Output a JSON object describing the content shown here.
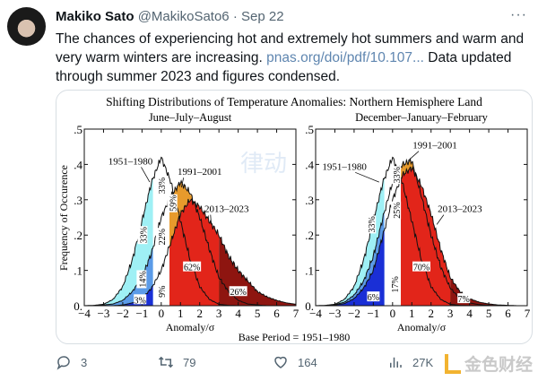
{
  "tweet": {
    "author_name": "Makiko Sato",
    "handle": "@MakikoSato6",
    "separator": "·",
    "date": "Sep 22",
    "more_label": "···",
    "text_before": "The chances of experiencing hot and extremely hot summers and warm and very warm winters are increasing.  ",
    "link": "pnas.org/doi/pdf/10.107...",
    "text_after": " Data updated through summer 2023 and figures condensed."
  },
  "actions": {
    "replies": "3",
    "retweets": "79",
    "likes": "164",
    "views": "27K"
  },
  "watermarks": {
    "center": "律动",
    "corner": "金色财经"
  },
  "figure": {
    "title": "Shifting Distributions of Temperature Anomalies: Northern Hemisphere Land",
    "ylabel": "Frequency of Occurence",
    "xlabel": "Anomaly/σ",
    "footer": "Base Period = 1951–1980",
    "colors": {
      "cold_1951": "#9ff0f5",
      "cold_1991": "#5b9be8",
      "cold_2013": "#1a2fd6",
      "hot_1991": "#e79a2c",
      "hot_2013": "#e2251a",
      "extreme_2013": "#8e1510"
    }
  },
  "chart_data": [
    {
      "type": "area",
      "subtitle": "June–July–August",
      "xlim": [
        -4,
        7
      ],
      "ylim": [
        0,
        0.5
      ],
      "xticks": [
        "−4",
        "−3",
        "−2",
        "−1",
        "0",
        "1",
        "2",
        "3",
        "4",
        "5",
        "6",
        "7"
      ],
      "yticks": [
        "0.",
        ".1",
        ".2",
        ".3",
        ".4",
        ".5"
      ],
      "x": [
        -4,
        -3.5,
        -3,
        -2.5,
        -2,
        -1.5,
        -1,
        -0.5,
        0,
        0.5,
        1,
        1.5,
        2,
        2.5,
        3,
        3.5,
        4,
        4.5,
        5,
        5.5,
        6,
        6.5,
        7
      ],
      "series": [
        {
          "name": "1951–1980",
          "values": [
            0,
            0.001,
            0.004,
            0.018,
            0.054,
            0.13,
            0.24,
            0.35,
            0.42,
            0.35,
            0.24,
            0.13,
            0.054,
            0.018,
            0.004,
            0.001,
            0,
            0,
            0,
            0,
            0,
            0,
            0
          ]
        },
        {
          "name": "1991–2001",
          "values": [
            0,
            0,
            0.002,
            0.005,
            0.015,
            0.04,
            0.08,
            0.15,
            0.25,
            0.31,
            0.35,
            0.32,
            0.25,
            0.16,
            0.08,
            0.04,
            0.015,
            0.005,
            0.002,
            0,
            0,
            0,
            0
          ]
        },
        {
          "name": "2013–2023",
          "values": [
            0,
            0,
            0,
            0,
            0.002,
            0.008,
            0.02,
            0.05,
            0.1,
            0.18,
            0.26,
            0.3,
            0.28,
            0.24,
            0.2,
            0.14,
            0.1,
            0.07,
            0.04,
            0.025,
            0.015,
            0.008,
            0.004
          ]
        }
      ],
      "labels": [
        {
          "text": "33%",
          "x": -0.95,
          "y": 0.2,
          "rot": true
        },
        {
          "text": "14%",
          "x": -1.0,
          "y": 0.075,
          "rot": true
        },
        {
          "text": "3%",
          "x": -1.1,
          "y": 0.017,
          "rot": false
        },
        {
          "text": "33%",
          "x": 0.0,
          "y": 0.34,
          "rot": true
        },
        {
          "text": "22%",
          "x": 0.0,
          "y": 0.195,
          "rot": true
        },
        {
          "text": "9%",
          "x": 0.0,
          "y": 0.04,
          "rot": true
        },
        {
          "text": "59%",
          "x": 0.6,
          "y": 0.29,
          "rot": true
        },
        {
          "text": "62%",
          "x": 1.6,
          "y": 0.11,
          "rot": false
        },
        {
          "text": "26%",
          "x": 4.0,
          "y": 0.04,
          "rot": false
        }
      ],
      "annotations": [
        {
          "text": "1951–1980",
          "x": -1.6,
          "y": 0.4,
          "to": [
            -0.6,
            0.35
          ]
        },
        {
          "text": "1991–2001",
          "x": 2.0,
          "y": 0.37,
          "to": [
            1.05,
            0.335
          ]
        },
        {
          "text": "2013–2023",
          "x": 3.4,
          "y": 0.265,
          "to": [
            2.6,
            0.23
          ]
        }
      ]
    },
    {
      "type": "area",
      "subtitle": "December–January–February",
      "xlim": [
        -4,
        7
      ],
      "ylim": [
        0,
        0.5
      ],
      "xticks": [
        "−4",
        "−3",
        "−2",
        "−1",
        "0",
        "1",
        "2",
        "3",
        "4",
        "5",
        "6",
        "7"
      ],
      "yticks": [
        "0.",
        ".1",
        ".2",
        ".3",
        ".4",
        ".5"
      ],
      "x": [
        -4,
        -3.5,
        -3,
        -2.5,
        -2,
        -1.5,
        -1,
        -0.5,
        0,
        0.5,
        1,
        1.5,
        2,
        2.5,
        3,
        3.5,
        4,
        4.5,
        5,
        5.5,
        6,
        6.5,
        7
      ],
      "series": [
        {
          "name": "1951–1980",
          "values": [
            0,
            0.001,
            0.004,
            0.018,
            0.054,
            0.13,
            0.24,
            0.35,
            0.42,
            0.35,
            0.24,
            0.13,
            0.054,
            0.018,
            0.004,
            0.001,
            0,
            0,
            0,
            0,
            0,
            0,
            0
          ]
        },
        {
          "name": "1991–2001",
          "values": [
            0,
            0,
            0.003,
            0.01,
            0.03,
            0.07,
            0.14,
            0.25,
            0.35,
            0.4,
            0.41,
            0.31,
            0.2,
            0.11,
            0.05,
            0.02,
            0.008,
            0.003,
            0.001,
            0,
            0,
            0,
            0
          ]
        },
        {
          "name": "2013–2023",
          "values": [
            0,
            0,
            0.002,
            0.006,
            0.02,
            0.05,
            0.1,
            0.2,
            0.3,
            0.37,
            0.39,
            0.34,
            0.26,
            0.16,
            0.08,
            0.04,
            0.02,
            0.01,
            0.005,
            0.002,
            0.001,
            0,
            0
          ]
        }
      ],
      "labels": [
        {
          "text": "33%",
          "x": -1.1,
          "y": 0.23,
          "rot": true
        },
        {
          "text": "6%",
          "x": -1.0,
          "y": 0.025,
          "rot": false
        },
        {
          "text": "33%",
          "x": 0.2,
          "y": 0.37,
          "rot": true
        },
        {
          "text": "25%",
          "x": 0.2,
          "y": 0.27,
          "rot": true
        },
        {
          "text": "17%",
          "x": 0.1,
          "y": 0.06,
          "rot": true
        },
        {
          "text": "70%",
          "x": 1.5,
          "y": 0.11,
          "rot": false
        },
        {
          "text": "7%",
          "x": 3.7,
          "y": 0.02,
          "rot": false
        }
      ],
      "annotations": [
        {
          "text": "1951–1980",
          "x": -2.5,
          "y": 0.385,
          "to": [
            -0.7,
            0.35
          ]
        },
        {
          "text": "1991–2001",
          "x": 2.2,
          "y": 0.445,
          "to": [
            0.8,
            0.41
          ]
        },
        {
          "text": "2013–2023",
          "x": 3.5,
          "y": 0.265,
          "to": [
            2.3,
            0.23
          ]
        }
      ]
    }
  ]
}
